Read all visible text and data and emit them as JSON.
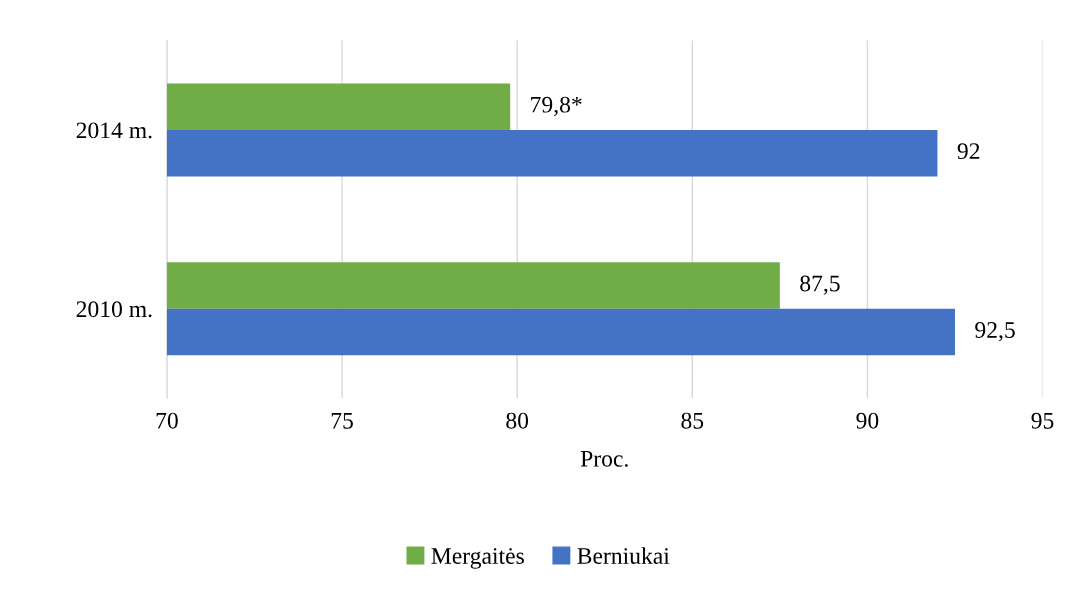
{
  "chart_data": {
    "type": "bar",
    "orientation": "horizontal",
    "categories": [
      "2014 m.",
      "2010 m."
    ],
    "series": [
      {
        "name": "Mergaitės",
        "color": "#70ad47",
        "values": [
          79.8,
          87.5
        ],
        "value_labels": [
          "79,8*",
          "87,5"
        ]
      },
      {
        "name": "Berniukai",
        "color": "#4472c4",
        "values": [
          92,
          92.5
        ],
        "value_labels": [
          "92",
          "92,5"
        ]
      }
    ],
    "xlabel": "Proc.",
    "xlim": [
      70,
      95
    ],
    "xticks": [
      70,
      75,
      80,
      85,
      90,
      95
    ],
    "grid": "x",
    "legend": "bottom"
  }
}
